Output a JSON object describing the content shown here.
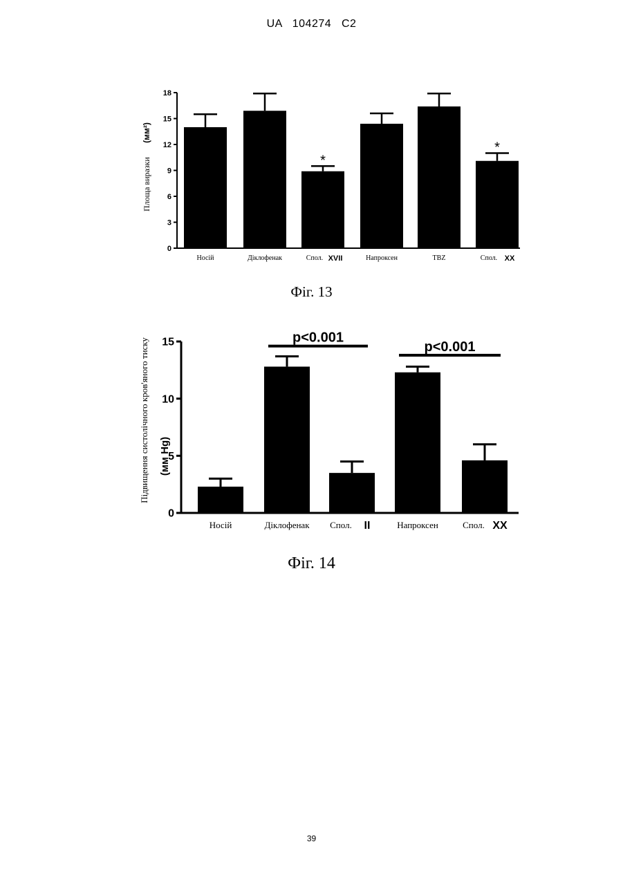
{
  "document": {
    "header": "UA   104274   C2",
    "page_number": "39",
    "figure13_caption": "Фіг. 13",
    "figure14_caption": "Фіг. 14"
  },
  "chart_data": [
    {
      "type": "bar",
      "categories": [
        "Носій",
        "Діклофенак",
        "Спол.",
        "Напроксен",
        "TBZ",
        "Спол."
      ],
      "category_suffixes": [
        "",
        "",
        "XVII",
        "",
        "",
        "XX"
      ],
      "values": [
        14.0,
        15.9,
        8.9,
        14.4,
        16.4,
        10.1
      ],
      "errors": [
        1.5,
        2.0,
        0.6,
        1.2,
        1.5,
        0.9
      ],
      "significance": [
        "",
        "",
        "*",
        "",
        "",
        "*"
      ],
      "ylabel": "Площа виразки",
      "ylabel_unit": "(мм²)",
      "yticks": [
        "0",
        "3",
        "6",
        "9",
        "12",
        "15",
        "18"
      ],
      "ylim": [
        0,
        18
      ],
      "bar_color": "#000000",
      "grid": false
    },
    {
      "type": "bar",
      "categories": [
        "Носій",
        "Діклофенак",
        "Спол.",
        "Напроксен",
        "Спол."
      ],
      "category_suffixes": [
        "",
        "",
        "II",
        "",
        "XX"
      ],
      "values": [
        2.3,
        12.8,
        3.5,
        12.3,
        4.6
      ],
      "errors": [
        0.7,
        0.9,
        1.0,
        0.5,
        1.4
      ],
      "ylabel": "Підвищення систолічного кров'яного тиску",
      "ylabel_unit": "(мм Hg)",
      "yticks": [
        "0",
        "5",
        "10",
        "15"
      ],
      "ylim": [
        0,
        15
      ],
      "annotations": [
        {
          "text": "p<0.001",
          "from_bar": 1,
          "to_bar": 2,
          "y": 14.6
        },
        {
          "text": "p<0.001",
          "from_bar": 3,
          "to_bar": 4,
          "y": 13.8
        }
      ],
      "bar_color": "#000000",
      "grid": false
    }
  ]
}
